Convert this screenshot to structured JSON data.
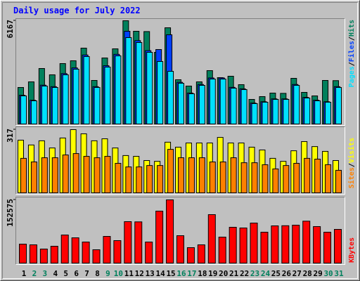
{
  "chart_data": [
    {
      "type": "bar",
      "title": "Daily usage for July 2022",
      "ylim": [
        0,
        6167
      ],
      "yticks": [
        6167
      ],
      "legend_separator": "/",
      "series": [
        {
          "name": "Hits",
          "color": "#00805c",
          "values": [
            2181,
            2517,
            3314,
            2937,
            3608,
            3776,
            4531,
            2601,
            3943,
            4489,
            6167,
            5538,
            5520,
            4279,
            5747,
            2643,
            2265,
            2517,
            3188,
            2769,
            2853,
            2349,
            1468,
            1636,
            1846,
            1830,
            2727,
            1888,
            1678,
            2601,
            2590
          ]
        },
        {
          "name": "Files",
          "color": "#0040ff",
          "values": [
            1720,
            1420,
            2320,
            2230,
            3010,
            3350,
            4120,
            2230,
            3480,
            4160,
            5538,
            4980,
            4380,
            4447,
            5328,
            2490,
            1850,
            2360,
            2750,
            2750,
            2190,
            2100,
            1250,
            1330,
            1500,
            1500,
            2360,
            1590,
            1420,
            1330,
            2230
          ]
        },
        {
          "name": "Pages",
          "color": "#00e0ff",
          "values": [
            1678,
            1384,
            2265,
            2181,
            2937,
            3272,
            4027,
            2181,
            3398,
            4069,
            5160,
            4866,
            4279,
            3734,
            3146,
            2433,
            1804,
            2307,
            2685,
            2685,
            2139,
            2055,
            1217,
            1300,
            1468,
            1468,
            2307,
            1552,
            1384,
            1300,
            2181
          ]
        }
      ]
    },
    {
      "type": "bar",
      "ylim": [
        0,
        317
      ],
      "yticks": [
        317
      ],
      "legend_separator": "/",
      "series": [
        {
          "name": "Visits",
          "color": "#ffff00",
          "values": [
            264,
            240,
            261,
            225,
            275,
            317,
            296,
            261,
            271,
            225,
            187,
            183,
            162,
            158,
            254,
            229,
            250,
            250,
            250,
            278,
            250,
            250,
            229,
            215,
            173,
            158,
            211,
            257,
            232,
            208,
            162
          ]
        },
        {
          "name": "Sites",
          "color": "#ff8000",
          "values": [
            173,
            155,
            176,
            176,
            190,
            197,
            183,
            176,
            183,
            148,
            130,
            130,
            137,
            137,
            218,
            176,
            176,
            176,
            155,
            155,
            176,
            151,
            151,
            141,
            120,
            137,
            148,
            173,
            169,
            141,
            113
          ]
        }
      ]
    },
    {
      "type": "bar",
      "ylim": [
        0,
        152575
      ],
      "yticks": [
        152575
      ],
      "categories": [
        "1",
        "2",
        "3",
        "4",
        "5",
        "6",
        "7",
        "8",
        "9",
        "10",
        "11",
        "12",
        "13",
        "14",
        "15",
        "16",
        "17",
        "18",
        "19",
        "20",
        "21",
        "22",
        "23",
        "24",
        "25",
        "26",
        "27",
        "28",
        "29",
        "30",
        "31"
      ],
      "category_colors": [
        "#000000",
        "#00805c",
        "#00805c",
        "#000000",
        "#000000",
        "#000000",
        "#000000",
        "#000000",
        "#00805c",
        "#00805c",
        "#000000",
        "#000000",
        "#000000",
        "#000000",
        "#000000",
        "#00805c",
        "#00805c",
        "#000000",
        "#000000",
        "#000000",
        "#000000",
        "#000000",
        "#00805c",
        "#00805c",
        "#000000",
        "#000000",
        "#000000",
        "#000000",
        "#000000",
        "#00805c",
        "#00805c"
      ],
      "series": [
        {
          "name": "KBytes",
          "color": "#ff0000",
          "values": [
            45770,
            44070,
            33900,
            40680,
            67800,
            61020,
            50850,
            32210,
            64410,
            54240,
            100010,
            99500,
            50850,
            125430,
            152575,
            66110,
            37290,
            44070,
            116960,
            62720,
            86450,
            84750,
            96620,
            74580,
            89840,
            90200,
            91530,
            101200,
            88140,
            74580,
            81360
          ]
        }
      ]
    }
  ]
}
